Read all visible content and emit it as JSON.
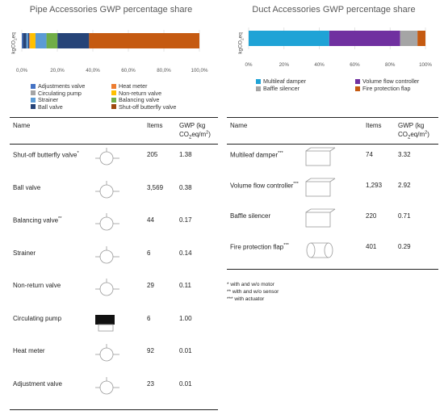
{
  "pipe": {
    "chart_data": {
      "type": "bar",
      "orientation": "horizontal-stacked",
      "title": "Pipe Accessories GWP percentage share",
      "ylabel": "kgCO2eq",
      "xlim": [
        0,
        100
      ],
      "x_ticks": [
        "0,0%",
        "20,0%",
        "40,0%",
        "60,0%",
        "80,0%",
        "100,0%"
      ],
      "series": [
        {
          "name": "Adjustments valve",
          "value": 0.6,
          "color": "#4472c4"
        },
        {
          "name": "Circulating pump",
          "value": 2.0,
          "color": "#264478"
        },
        {
          "name": "Strainer",
          "value": 1.0,
          "color": "#5b9bd5"
        },
        {
          "name": "Ball valve",
          "value": 0.6,
          "color": "#264478"
        },
        {
          "name": "Heat meter",
          "value": 0.5,
          "color": "#ed7d31"
        },
        {
          "name": "Non-return valve",
          "value": 3.0,
          "color": "#ffc000"
        },
        {
          "name": "Balancing valve",
          "value": 6.2,
          "color": "#5b9bd5"
        },
        {
          "name": "Shut-off butterfly valve",
          "value": 6.2,
          "color": "#70ad47"
        },
        {
          "name": "_seg9",
          "value": 17.8,
          "color": "#264478"
        },
        {
          "name": "_seg10",
          "value": 62.1,
          "color": "#c55a11"
        }
      ],
      "legend": [
        {
          "name": "Adjustments valve",
          "color": "#4472c4"
        },
        {
          "name": "Heat meter",
          "color": "#ed7d31"
        },
        {
          "name": "Circulating pump",
          "color": "#a5a5a5"
        },
        {
          "name": "Non-return valve",
          "color": "#ffc000"
        },
        {
          "name": "Strainer",
          "color": "#5b9bd5"
        },
        {
          "name": "Balancing valve",
          "color": "#70ad47"
        },
        {
          "name": "Ball valve",
          "color": "#264478"
        },
        {
          "name": "Shut-off butterfly valve",
          "color": "#9e480e"
        }
      ]
    },
    "table": {
      "headers": {
        "name": "Name",
        "items": "Items",
        "gwp_line1": "GWP (kg",
        "gwp_line2": "CO2eq/m2)"
      },
      "rows": [
        {
          "name": "Shut-off butterfly valve*",
          "items": "205",
          "gwp": "1.38"
        },
        {
          "name": "Ball valve",
          "items": "3,569",
          "gwp": "0.38"
        },
        {
          "name": "Balancing valve**",
          "items": "44",
          "gwp": "0.17"
        },
        {
          "name": "Strainer",
          "items": "6",
          "gwp": "0.14"
        },
        {
          "name": "Non-return valve",
          "items": "29",
          "gwp": "0.11"
        },
        {
          "name": "Circulating pump",
          "items": "6",
          "gwp": "1.00"
        },
        {
          "name": "Heat meter",
          "items": "92",
          "gwp": "0.01"
        },
        {
          "name": "Adjustment valve",
          "items": "23",
          "gwp": "0.01"
        }
      ]
    }
  },
  "duct": {
    "chart_data": {
      "type": "bar",
      "orientation": "horizontal-stacked",
      "title": "Duct Accessories GWP percentage share",
      "ylabel": "kgCO2eq",
      "xlim": [
        0,
        100
      ],
      "x_ticks": [
        "0%",
        "20%",
        "40%",
        "60%",
        "80%",
        "100%"
      ],
      "series": [
        {
          "name": "Multileaf damper",
          "value": 45.6,
          "color": "#1fa3d6"
        },
        {
          "name": "Volume flow controller",
          "value": 40.1,
          "color": "#7030a0"
        },
        {
          "name": "Baffle silencer",
          "value": 9.8,
          "color": "#a5a5a5"
        },
        {
          "name": "Fire protection flap",
          "value": 4.5,
          "color": "#c55a11"
        }
      ]
    },
    "table": {
      "headers": {
        "name": "Name",
        "items": "Items",
        "gwp_line1": "GWP (kg",
        "gwp_line2": "CO2eq/m2)"
      },
      "rows": [
        {
          "name": "Multileaf damper***",
          "items": "74",
          "gwp": "3.32"
        },
        {
          "name": "Volume flow controller***",
          "items": "1,293",
          "gwp": "2.92"
        },
        {
          "name": "Baffle silencer",
          "items": "220",
          "gwp": "0.71"
        },
        {
          "name": "Fire protection flap***",
          "items": "401",
          "gwp": "0.29"
        }
      ]
    }
  },
  "notes": [
    "* with and w/o motor",
    "** with and w/o sensor",
    "*** with actuator"
  ]
}
